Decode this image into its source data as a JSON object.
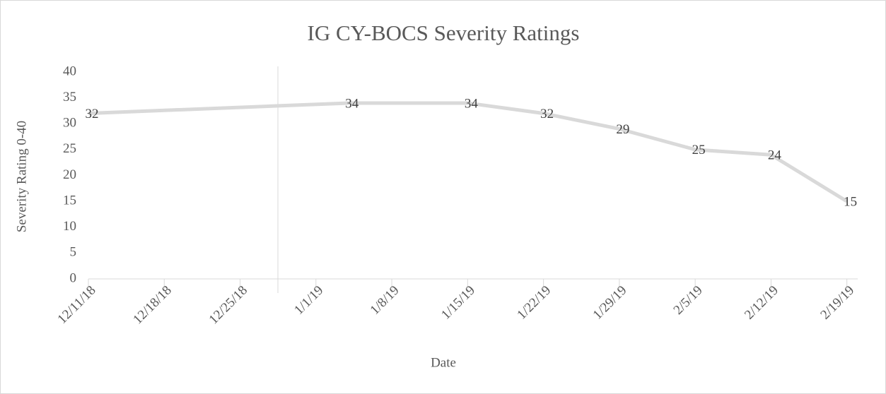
{
  "chart_data": {
    "type": "line",
    "title": "IG CY-BOCS Severity Ratings",
    "x_label": "Date",
    "y_label": "Severity Rating 0-40",
    "x": [
      "12/11/18",
      "1/4/19",
      "1/15/19",
      "1/22/19",
      "1/29/19",
      "2/5/19",
      "2/12/19",
      "2/19/19"
    ],
    "series": [
      {
        "name": "IG",
        "color": "#d9d9d9",
        "values": [
          32,
          34,
          34,
          32,
          29,
          25,
          24,
          15
        ]
      }
    ],
    "xlim": [
      "12/11/18",
      "2/20/19"
    ],
    "xticks": [
      "12/11/18",
      "12/18/18",
      "12/25/18",
      "1/1/19",
      "1/8/19",
      "1/15/19",
      "1/22/19",
      "1/29/19",
      "2/5/19",
      "2/12/19",
      "2/19/19"
    ],
    "ylim": [
      0,
      40
    ],
    "yticks": [
      0,
      5,
      10,
      15,
      20,
      25,
      30,
      35,
      40
    ],
    "grid": false
  }
}
